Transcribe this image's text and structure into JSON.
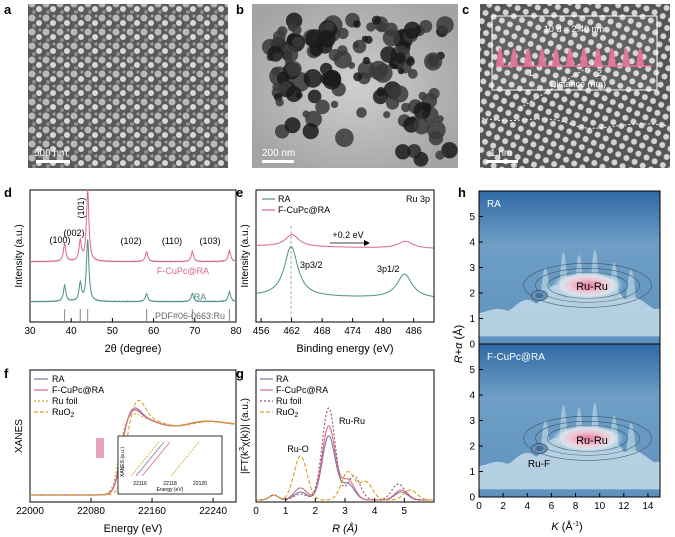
{
  "panel_labels": [
    "a",
    "b",
    "c",
    "d",
    "e",
    "f",
    "g",
    "h"
  ],
  "images": {
    "a": {
      "scale_bar": "500 nm",
      "kind": "sem"
    },
    "b": {
      "scale_bar": "200 nm",
      "kind": "tem"
    },
    "c": {
      "scale_bar": "1 nm",
      "kind": "hrtem",
      "inset_title": "10 d = 2.40 nm",
      "inset_xlabel": "Distance (nm)",
      "inset_ticks": [
        "1",
        "2"
      ]
    }
  },
  "colors": {
    "pink": "#d9688f",
    "teal": "#4f8f8a",
    "gray": "#888888",
    "orange": "#d9a020",
    "darkred": "#a05050",
    "purple": "#7777aa"
  },
  "chart_data": [
    {
      "panel": "d",
      "type": "line",
      "xlabel": "2θ (degree)",
      "ylabel": "Intensity (a.u.)",
      "xlim": [
        30,
        80
      ],
      "xticks": [
        "30",
        "40",
        "50",
        "60",
        "70",
        "80"
      ],
      "series": [
        {
          "name": "F-CuPc@RA",
          "color": "#d9688f",
          "peaks": [
            [
              38.4,
              18
            ],
            [
              42.2,
              20
            ],
            [
              44.0,
              72
            ],
            [
              58.3,
              10
            ],
            [
              69.4,
              10
            ],
            [
              78.4,
              11
            ]
          ]
        },
        {
          "name": "RA",
          "color": "#4f8f8a",
          "peaks": [
            [
              38.4,
              16
            ],
            [
              42.2,
              18
            ],
            [
              44.0,
              62
            ],
            [
              58.3,
              8
            ],
            [
              69.4,
              8
            ],
            [
              78.4,
              10
            ]
          ]
        },
        {
          "name": "PDF#06-0663:Ru",
          "color": "#888888",
          "sticks": [
            38.4,
            42.2,
            44.0,
            58.3,
            69.4,
            78.4
          ]
        }
      ],
      "annotations": [
        "(100)",
        "(002)",
        "(101)",
        "(102)",
        "(110)",
        "(103)"
      ]
    },
    {
      "panel": "e",
      "type": "line",
      "xlabel": "Binding energy (eV)",
      "ylabel": "Intensity (a.u.)",
      "xlim": [
        455,
        490
      ],
      "xticks": [
        "456",
        "462",
        "468",
        "474",
        "480",
        "486"
      ],
      "series": [
        {
          "name": "RA",
          "color": "#4f8f8a"
        },
        {
          "name": "F-CuPc@RA",
          "color": "#d9688f"
        }
      ],
      "annotations": [
        "Ru 3p",
        "+0.2 eV",
        "3p3/2",
        "3p1/2"
      ]
    },
    {
      "panel": "f",
      "type": "line",
      "xlabel": "Energy (eV)",
      "ylabel": "XANES",
      "xlim": [
        22000,
        22270
      ],
      "xticks": [
        "22000",
        "22080",
        "22160",
        "22240"
      ],
      "series": [
        {
          "name": "RA",
          "color": "#7777aa"
        },
        {
          "name": "F-CuPc@RA",
          "color": "#d9688f"
        },
        {
          "name": "Ru foil",
          "color": "#d9a020"
        },
        {
          "name": "RuO2",
          "color": "#d9a020"
        }
      ],
      "inset": {
        "xlabel": "Energy (eV)",
        "ylabel": "XANES (a.u.)",
        "xticks": [
          "22116",
          "22118",
          "22120"
        ]
      }
    },
    {
      "panel": "g",
      "type": "line",
      "xlabel": "R (Å)",
      "ylabel": "|FT(k³χ(k))| (a.u.)",
      "xlim": [
        0,
        6
      ],
      "xticks": [
        "0",
        "1",
        "2",
        "3",
        "4",
        "5"
      ],
      "series": [
        {
          "name": "RA",
          "color": "#7777aa",
          "peaks": [
            [
              2.45,
              64
            ],
            [
              1.5,
              8
            ],
            [
              3.1,
              16
            ],
            [
              4.9,
              8
            ]
          ]
        },
        {
          "name": "F-CuPc@RA",
          "color": "#d9688f",
          "peaks": [
            [
              2.45,
              74
            ],
            [
              1.5,
              12
            ],
            [
              3.1,
              20
            ],
            [
              4.9,
              10
            ]
          ]
        },
        {
          "name": "Ru foil",
          "color": "#a05050",
          "peaks": [
            [
              2.45,
              92
            ],
            [
              1.5,
              6
            ],
            [
              3.3,
              24
            ],
            [
              4.8,
              16
            ]
          ]
        },
        {
          "name": "RuO2",
          "color": "#d9a020",
          "peaks": [
            [
              1.5,
              44
            ],
            [
              3.1,
              28
            ],
            [
              3.7,
              18
            ],
            [
              5.2,
              10
            ]
          ]
        }
      ],
      "annotations": [
        "Ru-O",
        "Ru-Ru"
      ]
    },
    {
      "panel": "h",
      "type": "heatmap",
      "xlabel": "K (Å⁻¹)",
      "ylabel": "R+α (Å)",
      "xlim": [
        0,
        15
      ],
      "xticks": [
        "0",
        "2",
        "4",
        "6",
        "8",
        "10",
        "12",
        "14"
      ],
      "yticks": [
        "0",
        "1",
        "2",
        "3",
        "4",
        "5"
      ],
      "maps": [
        {
          "name": "RA",
          "labels": [
            "Ru-Ru"
          ]
        },
        {
          "name": "F-CuPc@RA",
          "labels": [
            "Ru-Ru",
            "Ru-F"
          ]
        }
      ]
    }
  ]
}
